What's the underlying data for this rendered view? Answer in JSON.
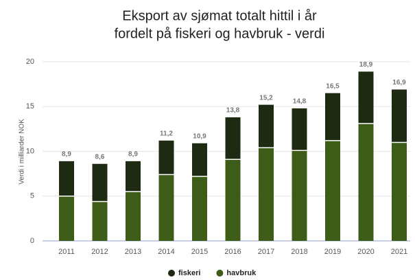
{
  "chart_data": {
    "type": "stacked_bar",
    "title": [
      "Eksport av sjømat totalt hittil i år",
      "fordelt på fiskeri og havbruk - verdi"
    ],
    "y_label": "Verdi i milliarder NOK",
    "categories": [
      "2011",
      "2012",
      "2013",
      "2014",
      "2015",
      "2016",
      "2017",
      "2018",
      "2019",
      "2020",
      "2021"
    ],
    "series": [
      {
        "name": "havbruk",
        "color": "#3d5c17",
        "values": [
          5.0,
          4.4,
          5.5,
          7.4,
          7.2,
          9.1,
          10.4,
          10.1,
          11.2,
          13.1,
          11.0
        ]
      },
      {
        "name": "fiskeri",
        "color": "#1f2a12",
        "values": [
          3.9,
          4.2,
          3.4,
          3.8,
          3.7,
          4.7,
          4.8,
          4.7,
          5.3,
          5.8,
          5.9
        ]
      }
    ],
    "totals": [
      8.9,
      8.6,
      8.9,
      11.2,
      10.9,
      13.8,
      15.2,
      14.8,
      16.5,
      18.9,
      16.9
    ],
    "total_labels": [
      "8,9",
      "8,6",
      "8,9",
      "11,2",
      "10,9",
      "13,8",
      "15,2",
      "14,8",
      "16,5",
      "18,9",
      "16,9"
    ],
    "legend_order": [
      1,
      0
    ],
    "ylim": [
      0,
      20
    ],
    "yticks": [
      0,
      5,
      10,
      15,
      20
    ],
    "grid": true
  }
}
